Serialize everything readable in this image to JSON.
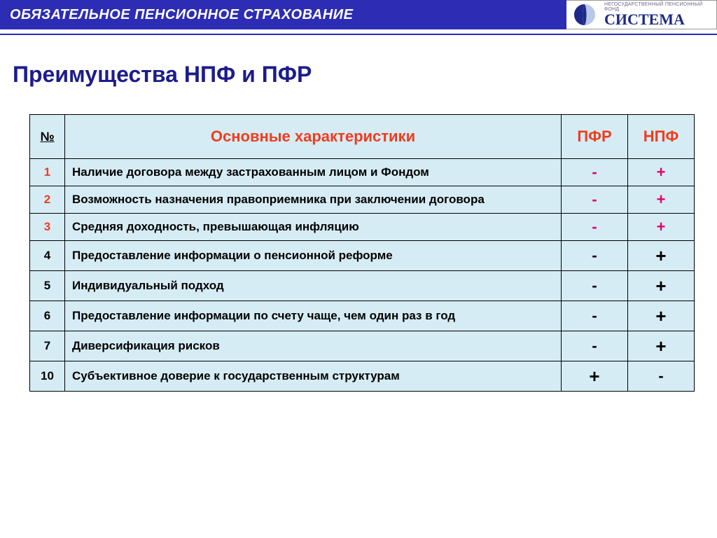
{
  "topbar": {
    "title": "ОБЯЗАТЕЛЬНОЕ ПЕНСИОННОЕ СТРАХОВАНИЕ",
    "bg_color": "#2c2cb5",
    "text_color": "#ffffff"
  },
  "logo": {
    "subtitle": "НЕГОСУДАРСТВЕННЫЙ ПЕНСИОННЫЙ ФОНД",
    "name": "СИСТЕМА",
    "mark_color": "#1e2a8a"
  },
  "slide": {
    "title": "Преимущества НПФ и ПФР",
    "title_color": "#1c1c8c"
  },
  "table": {
    "header_bg": "#d6ecf5",
    "row_bg": "#d6ecf5",
    "border_color": "#000000",
    "header_text_color": "#f03c1e",
    "columns": {
      "num": "№",
      "desc": "Основные характеристики",
      "col1": "ПФР",
      "col2": "НПФ"
    },
    "rows": [
      {
        "num": "1",
        "num_color": "orange",
        "desc": "Наличие договора между застрахованным лицом и Фондом",
        "v1": "-",
        "v1_color": "red",
        "v2": "+",
        "v2_color": "red"
      },
      {
        "num": "2",
        "num_color": "orange",
        "desc": "Возможность назначения правоприемника при заключении договора",
        "v1": "-",
        "v1_color": "red",
        "v2": "+",
        "v2_color": "red"
      },
      {
        "num": "3",
        "num_color": "orange",
        "desc": "Средняя доходность, превышающая инфляцию",
        "v1": "-",
        "v1_color": "red",
        "v2": "+",
        "v2_color": "red"
      },
      {
        "num": "4",
        "num_color": "black",
        "desc": "Предоставление информации о пенсионной реформе",
        "v1": "-",
        "v1_color": "black",
        "v2": "+",
        "v2_color": "black"
      },
      {
        "num": "5",
        "num_color": "black",
        "desc": "Индивидуальный подход",
        "v1": "-",
        "v1_color": "black",
        "v2": "+",
        "v2_color": "black"
      },
      {
        "num": "6",
        "num_color": "black",
        "desc": "Предоставление информации по счету чаще, чем один раз в год",
        "v1": "-",
        "v1_color": "black",
        "v2": "+",
        "v2_color": "black"
      },
      {
        "num": "7",
        "num_color": "black",
        "desc": "Диверсификация рисков",
        "v1": "-",
        "v1_color": "black",
        "v2": "+",
        "v2_color": "black"
      },
      {
        "num": "10",
        "num_color": "black",
        "desc": "Субъективное доверие к государственным структурам",
        "v1": "+",
        "v1_color": "black",
        "v2": "-",
        "v2_color": "black"
      }
    ]
  }
}
